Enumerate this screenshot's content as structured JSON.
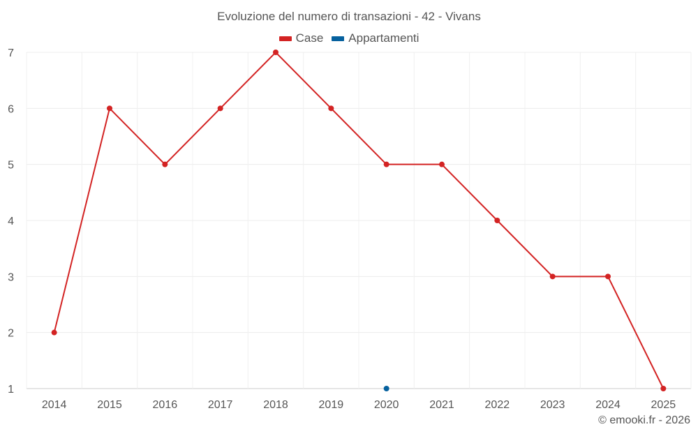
{
  "chart_data": {
    "type": "line",
    "title": "Evoluzione del numero di transazioni - 42 - Vivans",
    "categories": [
      "2014",
      "2015",
      "2016",
      "2017",
      "2018",
      "2019",
      "2020",
      "2021",
      "2022",
      "2023",
      "2024",
      "2025"
    ],
    "ylim": [
      1,
      7
    ],
    "yticks": [
      1,
      2,
      3,
      4,
      5,
      6,
      7
    ],
    "grid": true,
    "legend_position": "top-center",
    "series": [
      {
        "name": "Case",
        "color": "#d32323",
        "values": [
          2,
          6,
          5,
          6,
          7,
          6,
          5,
          5,
          4,
          3,
          3,
          1
        ]
      },
      {
        "name": "Appartamenti",
        "color": "#06619e",
        "values": [
          null,
          null,
          null,
          null,
          null,
          null,
          1,
          null,
          null,
          null,
          null,
          null
        ]
      }
    ]
  },
  "credit": "© emooki.fr - 2026"
}
